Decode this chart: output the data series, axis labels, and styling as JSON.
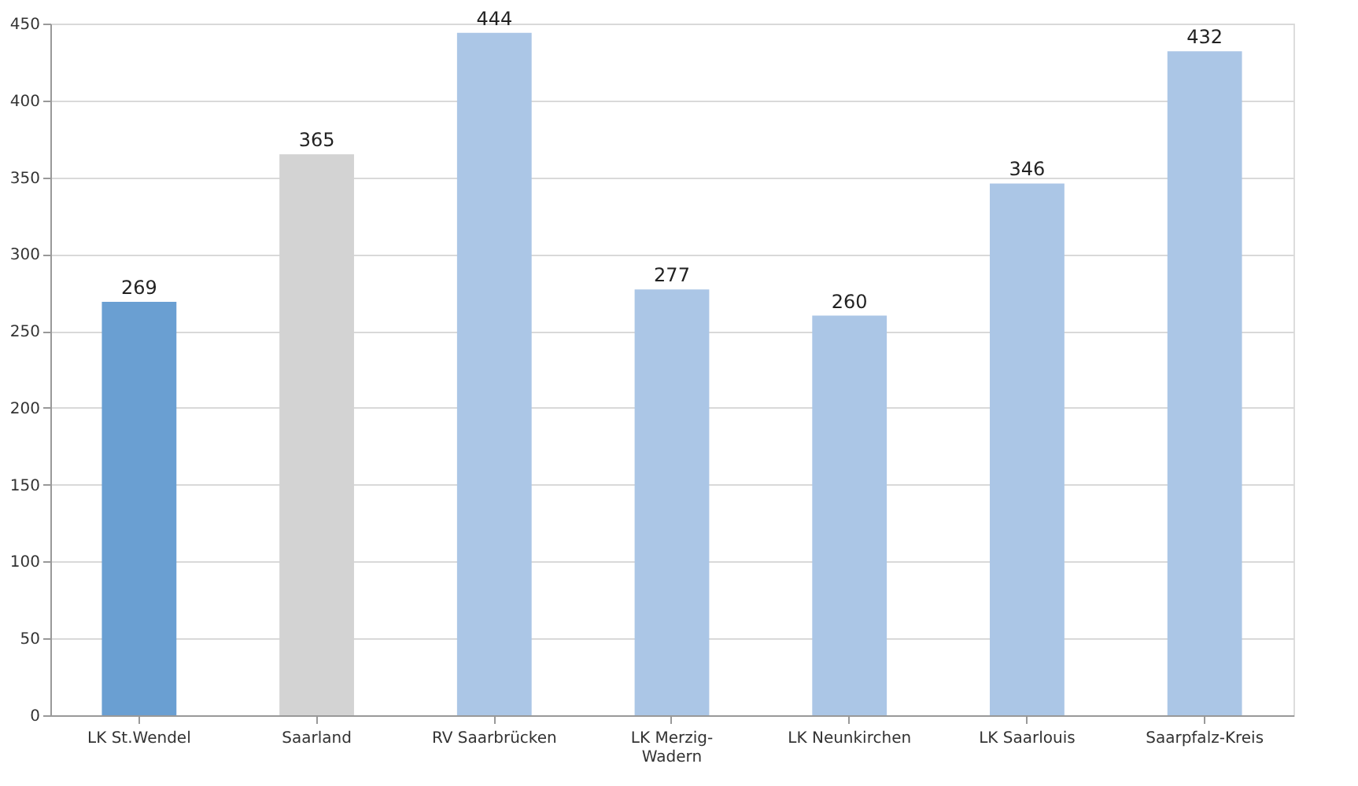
{
  "chart_data": {
    "type": "bar",
    "categories": [
      "LK St.Wendel",
      "Saarland",
      "RV Saarbrücken",
      "LK Merzig-Wadern",
      "LK Neunkirchen",
      "LK Saarlouis",
      "Saarpfalz-Kreis"
    ],
    "values": [
      269,
      365,
      444,
      277,
      260,
      346,
      432
    ],
    "colors": [
      "#6a9fd2",
      "#d3d3d3",
      "#abc6e6",
      "#abc6e6",
      "#abc6e6",
      "#abc6e6",
      "#abc6e6"
    ],
    "ylim": [
      0,
      450
    ],
    "yticks": [
      0,
      50,
      100,
      150,
      200,
      250,
      300,
      350,
      400,
      450
    ],
    "grid": "y",
    "data_labels": true
  }
}
